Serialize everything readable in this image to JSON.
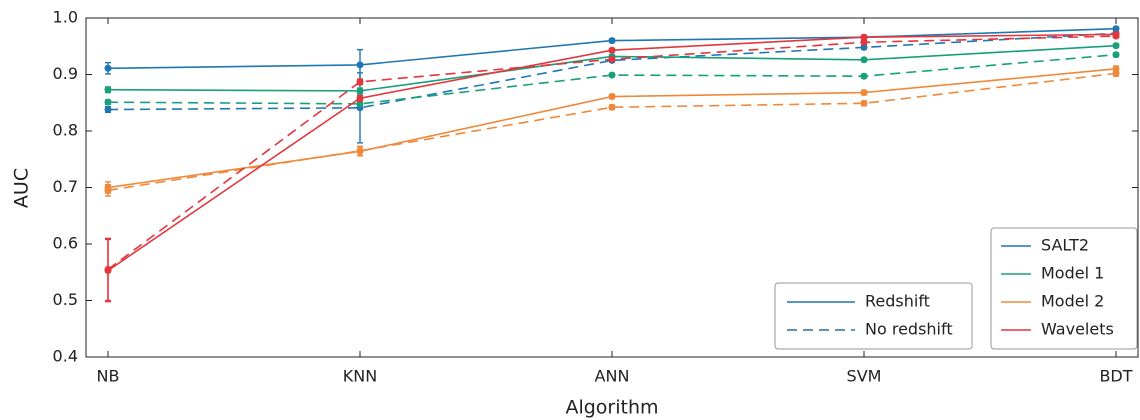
{
  "chart_data": {
    "type": "line",
    "x_label": "Algorithm",
    "y_label": "AUC",
    "categories": [
      "NB",
      "KNN",
      "ANN",
      "SVM",
      "BDT"
    ],
    "ylim": [
      0.4,
      1.0
    ],
    "yticks": [
      0.4,
      0.5,
      0.6,
      0.7,
      0.8,
      0.9,
      {
        "value": 1.0,
        "label": "1.0"
      }
    ],
    "line_styles": [
      {
        "name": "Redshift",
        "dash": "solid"
      },
      {
        "name": "No redshift",
        "dash": "dashed"
      }
    ],
    "series": [
      {
        "name": "SALT2",
        "color": "#1f77b4",
        "values": [
          [
            0.911,
            0.917,
            0.96,
            0.966,
            0.981
          ],
          [
            0.838,
            0.841,
            0.925,
            0.948,
            0.973
          ]
        ],
        "errors": [
          [
            0.01,
            0.027,
            0.003,
            0.003,
            0.003
          ],
          [
            0.005,
            0.062,
            0.003,
            0.003,
            0.003
          ]
        ]
      },
      {
        "name": "Model 1",
        "color": "#17a07a",
        "values": [
          [
            0.873,
            0.871,
            0.932,
            0.926,
            0.951
          ],
          [
            0.851,
            0.848,
            0.899,
            0.897,
            0.935
          ]
        ],
        "errors": [
          [
            0.005,
            0.005,
            0.003,
            0.003,
            0.003
          ],
          [
            0.004,
            0.004,
            0.003,
            0.003,
            0.003
          ]
        ]
      },
      {
        "name": "Model 2",
        "color": "#f0883a",
        "values": [
          [
            0.7,
            0.764,
            0.861,
            0.868,
            0.91
          ],
          [
            0.695,
            0.765,
            0.842,
            0.849,
            0.902
          ]
        ],
        "errors": [
          [
            0.01,
            0.008,
            0.004,
            0.004,
            0.005
          ],
          [
            0.01,
            0.008,
            0.004,
            0.004,
            0.005
          ]
        ]
      },
      {
        "name": "Wavelets",
        "color": "#e3363d",
        "values": [
          [
            0.553,
            0.858,
            0.943,
            0.966,
            0.971
          ],
          [
            0.555,
            0.887,
            0.927,
            0.957,
            0.968
          ]
        ],
        "errors": [
          [
            0.055,
            0.005,
            0.003,
            0.003,
            0.003
          ],
          [
            0.055,
            0.005,
            0.003,
            0.003,
            0.003
          ]
        ]
      }
    ]
  }
}
